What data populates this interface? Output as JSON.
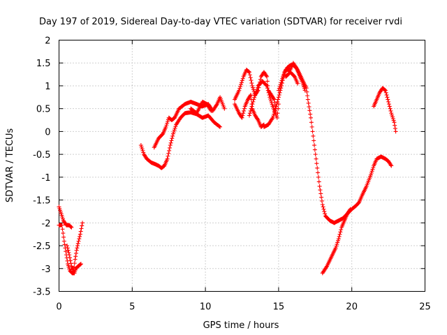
{
  "chart_data": {
    "type": "scatter",
    "title": "Day 197 of 2019, Sidereal Day-to-day VTEC variation (SDTVAR) for receiver rvdi",
    "xlabel": "GPS time / hours",
    "ylabel": "SDTVAR / TECUs",
    "xlim": [
      0,
      25
    ],
    "ylim": [
      -3.5,
      2
    ],
    "xticks": [
      "0",
      "5",
      "10",
      "15",
      "20",
      "25"
    ],
    "yticks": [
      "-3.5",
      "-3",
      "-2.5",
      "-2",
      "-1.5",
      "-1",
      "-0.5",
      "0",
      "0.5",
      "1",
      "1.5",
      "2"
    ],
    "grid": true,
    "marker": "plus",
    "color": "#ff0000",
    "series": [
      {
        "tracks": [
          [
            [
              0.0,
              -1.65
            ],
            [
              0.15,
              -1.8
            ],
            [
              0.3,
              -1.95
            ],
            [
              0.5,
              -2.05
            ],
            [
              0.7,
              -2.05
            ],
            [
              0.85,
              -2.1
            ]
          ],
          [
            [
              0.0,
              -2.05
            ],
            [
              0.2,
              -2.05
            ],
            [
              0.35,
              -2.4
            ],
            [
              0.5,
              -2.7
            ],
            [
              0.6,
              -2.9
            ],
            [
              0.75,
              -3.05
            ],
            [
              0.9,
              -3.1
            ],
            [
              1.05,
              -3.1
            ],
            [
              1.15,
              -3.0
            ],
            [
              1.3,
              -2.95
            ],
            [
              1.5,
              -2.9
            ]
          ],
          [
            [
              0.55,
              -2.5
            ],
            [
              0.7,
              -2.7
            ],
            [
              0.85,
              -2.95
            ],
            [
              1.0,
              -3.05
            ],
            [
              1.1,
              -2.8
            ],
            [
              1.2,
              -2.6
            ],
            [
              1.3,
              -2.45
            ],
            [
              1.45,
              -2.25
            ],
            [
              1.6,
              -2.0
            ]
          ],
          [
            [
              5.6,
              -0.3
            ],
            [
              5.8,
              -0.5
            ],
            [
              6.0,
              -0.6
            ],
            [
              6.3,
              -0.68
            ],
            [
              6.6,
              -0.72
            ],
            [
              6.8,
              -0.75
            ],
            [
              7.0,
              -0.8
            ],
            [
              7.2,
              -0.75
            ],
            [
              7.4,
              -0.6
            ],
            [
              7.6,
              -0.3
            ],
            [
              7.8,
              -0.05
            ],
            [
              8.0,
              0.15
            ],
            [
              8.3,
              0.3
            ],
            [
              8.6,
              0.4
            ],
            [
              9.0,
              0.42
            ],
            [
              9.4,
              0.38
            ],
            [
              9.8,
              0.3
            ],
            [
              10.2,
              0.35
            ],
            [
              10.6,
              0.2
            ],
            [
              11.0,
              0.1
            ]
          ],
          [
            [
              6.5,
              -0.35
            ],
            [
              6.8,
              -0.15
            ],
            [
              7.1,
              -0.05
            ],
            [
              7.3,
              0.1
            ],
            [
              7.5,
              0.3
            ],
            [
              7.7,
              0.25
            ],
            [
              7.9,
              0.3
            ],
            [
              8.2,
              0.5
            ],
            [
              8.6,
              0.6
            ],
            [
              9.0,
              0.65
            ],
            [
              9.4,
              0.6
            ],
            [
              9.8,
              0.55
            ],
            [
              10.2,
              0.6
            ],
            [
              10.5,
              0.45
            ],
            [
              10.8,
              0.6
            ],
            [
              11.0,
              0.75
            ],
            [
              11.3,
              0.5
            ]
          ],
          [
            [
              9.0,
              0.5
            ],
            [
              9.4,
              0.4
            ],
            [
              9.8,
              0.65
            ],
            [
              10.1,
              0.6
            ],
            [
              10.4,
              0.45
            ]
          ],
          [
            [
              12.0,
              0.7
            ],
            [
              12.3,
              0.9
            ],
            [
              12.6,
              1.2
            ],
            [
              12.8,
              1.35
            ],
            [
              13.0,
              1.3
            ],
            [
              13.2,
              1.0
            ],
            [
              13.4,
              0.8
            ],
            [
              13.6,
              0.9
            ],
            [
              13.8,
              1.2
            ],
            [
              14.0,
              1.3
            ],
            [
              14.2,
              1.2
            ],
            [
              14.3,
              0.9
            ],
            [
              14.5,
              0.8
            ],
            [
              14.7,
              0.7
            ],
            [
              14.8,
              0.5
            ]
          ],
          [
            [
              12.0,
              0.6
            ],
            [
              12.3,
              0.4
            ],
            [
              12.5,
              0.3
            ],
            [
              12.7,
              0.55
            ],
            [
              12.9,
              0.7
            ],
            [
              13.1,
              0.8
            ],
            [
              13.2,
              0.5
            ],
            [
              13.4,
              0.35
            ],
            [
              13.6,
              0.25
            ],
            [
              13.8,
              0.1
            ],
            [
              14.0,
              0.15
            ]
          ],
          [
            [
              13.0,
              0.35
            ],
            [
              13.3,
              0.7
            ],
            [
              13.6,
              1.0
            ],
            [
              13.9,
              1.1
            ],
            [
              14.2,
              1.0
            ],
            [
              14.4,
              0.75
            ],
            [
              14.6,
              0.55
            ],
            [
              14.9,
              0.3
            ],
            [
              15.0,
              0.6
            ]
          ],
          [
            [
              14.0,
              0.1
            ],
            [
              14.3,
              0.15
            ],
            [
              14.6,
              0.3
            ],
            [
              14.8,
              0.5
            ],
            [
              15.0,
              0.75
            ],
            [
              15.2,
              1.0
            ],
            [
              15.4,
              1.3
            ],
            [
              15.6,
              1.4
            ],
            [
              15.8,
              1.45
            ],
            [
              16.0,
              1.45
            ],
            [
              16.2,
              1.4
            ],
            [
              16.4,
              1.25
            ],
            [
              16.6,
              1.1
            ],
            [
              16.8,
              0.9
            ]
          ],
          [
            [
              15.0,
              0.9
            ],
            [
              15.3,
              1.2
            ],
            [
              15.5,
              1.35
            ],
            [
              15.8,
              1.35
            ],
            [
              16.0,
              1.5
            ],
            [
              16.3,
              1.35
            ],
            [
              16.6,
              1.15
            ],
            [
              16.9,
              0.95
            ],
            [
              17.0,
              0.7
            ],
            [
              17.2,
              0.3
            ],
            [
              17.4,
              -0.2
            ],
            [
              17.6,
              -0.7
            ],
            [
              17.8,
              -1.2
            ],
            [
              18.0,
              -1.6
            ],
            [
              18.2,
              -1.85
            ],
            [
              18.5,
              -1.95
            ],
            [
              18.8,
              -2.0
            ],
            [
              19.1,
              -1.95
            ],
            [
              19.4,
              -1.9
            ],
            [
              19.7,
              -1.8
            ],
            [
              20.0,
              -1.7
            ],
            [
              20.3,
              -1.62
            ],
            [
              20.5,
              -1.55
            ],
            [
              20.7,
              -1.4
            ],
            [
              21.0,
              -1.2
            ],
            [
              21.3,
              -0.95
            ],
            [
              21.5,
              -0.75
            ],
            [
              21.7,
              -0.6
            ],
            [
              22.0,
              -0.55
            ],
            [
              22.3,
              -0.6
            ],
            [
              22.5,
              -0.65
            ],
            [
              22.7,
              -0.75
            ]
          ],
          [
            [
              15.5,
              1.2
            ],
            [
              15.8,
              1.3
            ],
            [
              16.1,
              1.2
            ],
            [
              16.3,
              1.05
            ]
          ],
          [
            [
              18.0,
              -3.1
            ],
            [
              18.3,
              -2.95
            ],
            [
              18.6,
              -2.75
            ],
            [
              18.9,
              -2.55
            ],
            [
              19.1,
              -2.35
            ],
            [
              19.3,
              -2.1
            ],
            [
              19.5,
              -1.95
            ],
            [
              19.7,
              -1.8
            ],
            [
              19.9,
              -1.7
            ]
          ],
          [
            [
              21.5,
              0.55
            ],
            [
              21.7,
              0.7
            ],
            [
              21.9,
              0.85
            ],
            [
              22.1,
              0.95
            ],
            [
              22.3,
              0.9
            ],
            [
              22.5,
              0.65
            ],
            [
              22.7,
              0.4
            ],
            [
              22.9,
              0.2
            ],
            [
              23.0,
              0.0
            ]
          ]
        ]
      }
    ]
  }
}
